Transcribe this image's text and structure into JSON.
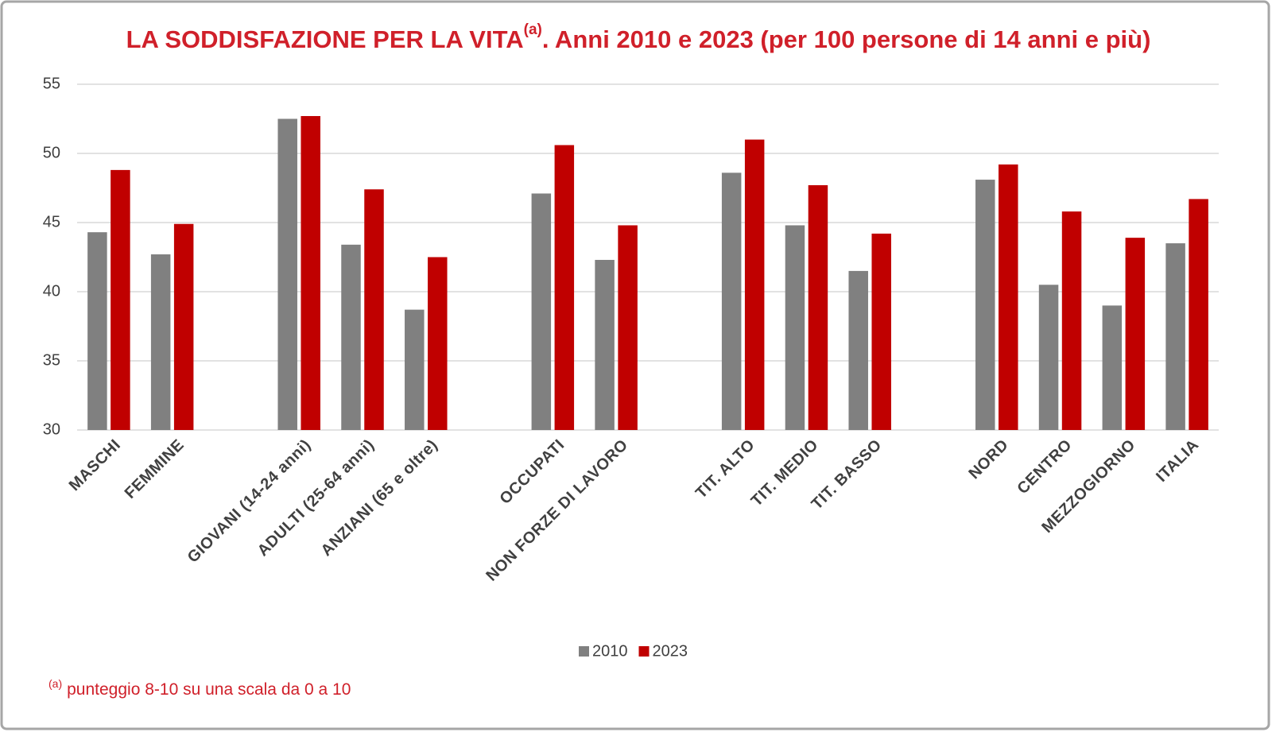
{
  "chart_data": {
    "type": "bar",
    "title": "LA SODDISFAZIONE PER LA VITA",
    "title_superscript": "(a)",
    "title_rest": ". Anni 2010 e 2023 (per 100 persone di 14 anni e più)",
    "footnote_marker": "(a)",
    "footnote": "punteggio 8-10 su una scala da 0 a 10",
    "categories": [
      "MASCHI",
      "FEMMINE",
      null,
      "GIOVANI (14-24 anni)",
      "ADULTI (25-64 anni)",
      "ANZIANI (65 e oltre)",
      null,
      "OCCUPATI",
      "NON FORZE DI LAVORO",
      null,
      "TIT. ALTO",
      "TIT. MEDIO",
      "TIT. BASSO",
      null,
      "NORD",
      "CENTRO",
      "MEZZOGIORNO",
      "ITALIA"
    ],
    "series": [
      {
        "name": "2010",
        "color": "#808080",
        "values": [
          44.3,
          42.7,
          null,
          52.5,
          43.4,
          38.7,
          null,
          47.1,
          42.3,
          null,
          48.6,
          44.8,
          41.5,
          null,
          48.1,
          40.5,
          39.0,
          43.5
        ]
      },
      {
        "name": "2023",
        "color": "#c00000",
        "values": [
          48.8,
          44.9,
          null,
          52.7,
          47.4,
          42.5,
          null,
          50.6,
          44.8,
          null,
          51.0,
          47.7,
          44.2,
          null,
          49.2,
          45.8,
          43.9,
          46.7
        ]
      }
    ],
    "ylim": [
      30,
      55
    ],
    "yticks": [
      30,
      35,
      40,
      45,
      50,
      55
    ],
    "grid": true,
    "legend": "bottom"
  }
}
